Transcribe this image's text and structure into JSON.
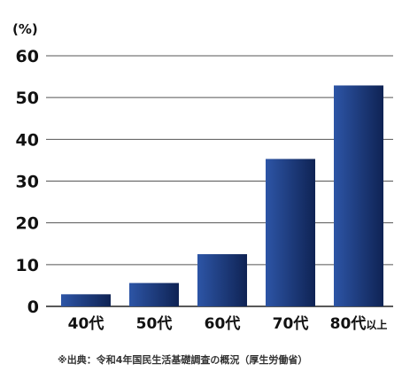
{
  "chart_data": {
    "type": "bar",
    "unit_label": "(%)",
    "categories": [
      "40代",
      "50代",
      "60代",
      "70代",
      "80代以上"
    ],
    "category_parts": [
      {
        "main": "40代",
        "suffix": ""
      },
      {
        "main": "50代",
        "suffix": ""
      },
      {
        "main": "60代",
        "suffix": ""
      },
      {
        "main": "70代",
        "suffix": ""
      },
      {
        "main": "80代",
        "suffix": "以上"
      }
    ],
    "values": [
      2.9,
      5.6,
      12.5,
      35.3,
      52.9
    ],
    "ylim": [
      0,
      60
    ],
    "yticks": [
      "0",
      "10",
      "20",
      "30",
      "40",
      "50",
      "60"
    ],
    "grid": true,
    "bar_color_dark": "#0f2354",
    "bar_color_light": "#2d55a6",
    "note": "※出典：令和4年国民生活基礎調査の概況（厚生労働省）"
  }
}
